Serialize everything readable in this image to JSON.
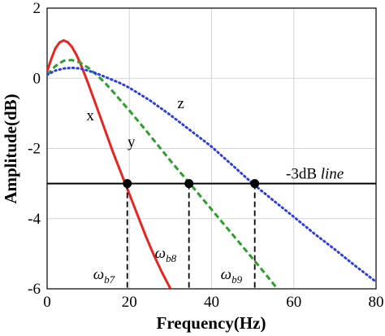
{
  "chart_data": {
    "type": "line",
    "title": "",
    "xlabel": "Frequency(Hz)",
    "ylabel": "Amplitude(dB)",
    "xlim": [
      0,
      80
    ],
    "ylim": [
      -6,
      2
    ],
    "xticks": [
      0,
      20,
      40,
      60,
      80
    ],
    "yticks": [
      -6,
      -4,
      -2,
      0,
      2
    ],
    "xtick_labels": [
      "0",
      "20",
      "40",
      "60",
      "80"
    ],
    "ytick_labels": [
      "-6",
      "-4",
      "-2",
      "0",
      "2"
    ],
    "grid": true,
    "series": [
      {
        "name": "x",
        "color": "#e8251f",
        "style": "solid",
        "x": [
          0,
          1,
          2,
          3,
          4,
          5,
          6,
          7,
          8,
          9,
          10,
          12,
          14,
          16,
          18,
          20,
          22,
          24,
          26,
          28,
          30
        ],
        "y": [
          0.2,
          0.55,
          0.85,
          1.02,
          1.08,
          1.03,
          0.9,
          0.7,
          0.45,
          0.15,
          -0.15,
          -0.8,
          -1.45,
          -2.1,
          -2.7,
          -3.3,
          -3.9,
          -4.5,
          -5.05,
          -5.55,
          -6.0
        ]
      },
      {
        "name": "y",
        "color": "#2aa02a",
        "style": "dashed",
        "x": [
          0,
          2,
          4,
          6,
          8,
          10,
          12,
          14,
          16,
          18,
          20,
          22,
          24,
          26,
          28,
          30,
          32,
          34,
          36,
          38,
          40,
          42,
          44,
          46,
          48,
          50,
          52,
          54,
          56
        ],
        "y": [
          0.1,
          0.35,
          0.5,
          0.52,
          0.45,
          0.3,
          0.1,
          -0.12,
          -0.38,
          -0.65,
          -0.92,
          -1.2,
          -1.48,
          -1.77,
          -2.06,
          -2.35,
          -2.63,
          -2.9,
          -3.18,
          -3.46,
          -3.74,
          -4.02,
          -4.3,
          -4.58,
          -4.86,
          -5.14,
          -5.42,
          -5.71,
          -6.0
        ]
      },
      {
        "name": "z",
        "color": "#2b3de8",
        "style": "dotted",
        "x": [
          0,
          2,
          4,
          6,
          8,
          10,
          12,
          15,
          18,
          20,
          25,
          30,
          35,
          40,
          45,
          50,
          55,
          60,
          65,
          70,
          75,
          80
        ],
        "y": [
          0.1,
          0.22,
          0.28,
          0.3,
          0.28,
          0.22,
          0.14,
          0.0,
          -0.15,
          -0.27,
          -0.63,
          -1.05,
          -1.5,
          -1.95,
          -2.47,
          -3.0,
          -3.48,
          -3.95,
          -4.43,
          -4.88,
          -5.35,
          -5.8
        ]
      }
    ],
    "reference_line": {
      "y": -3,
      "label_prefix": "-3dB ",
      "label_italic": "line"
    },
    "markers": [
      {
        "label": "ω",
        "sub": "b7",
        "x": 19.5,
        "y": -3
      },
      {
        "label": "ω",
        "sub": "b8",
        "x": 34.5,
        "y": -3
      },
      {
        "label": "ω",
        "sub": "b9",
        "x": 50.5,
        "y": -3
      }
    ],
    "series_labels": [
      {
        "text": "x",
        "x": 10.5,
        "y": -1.2
      },
      {
        "text": "y",
        "x": 20.5,
        "y": -1.95
      },
      {
        "text": "z",
        "x": 32.5,
        "y": -0.85
      }
    ]
  }
}
